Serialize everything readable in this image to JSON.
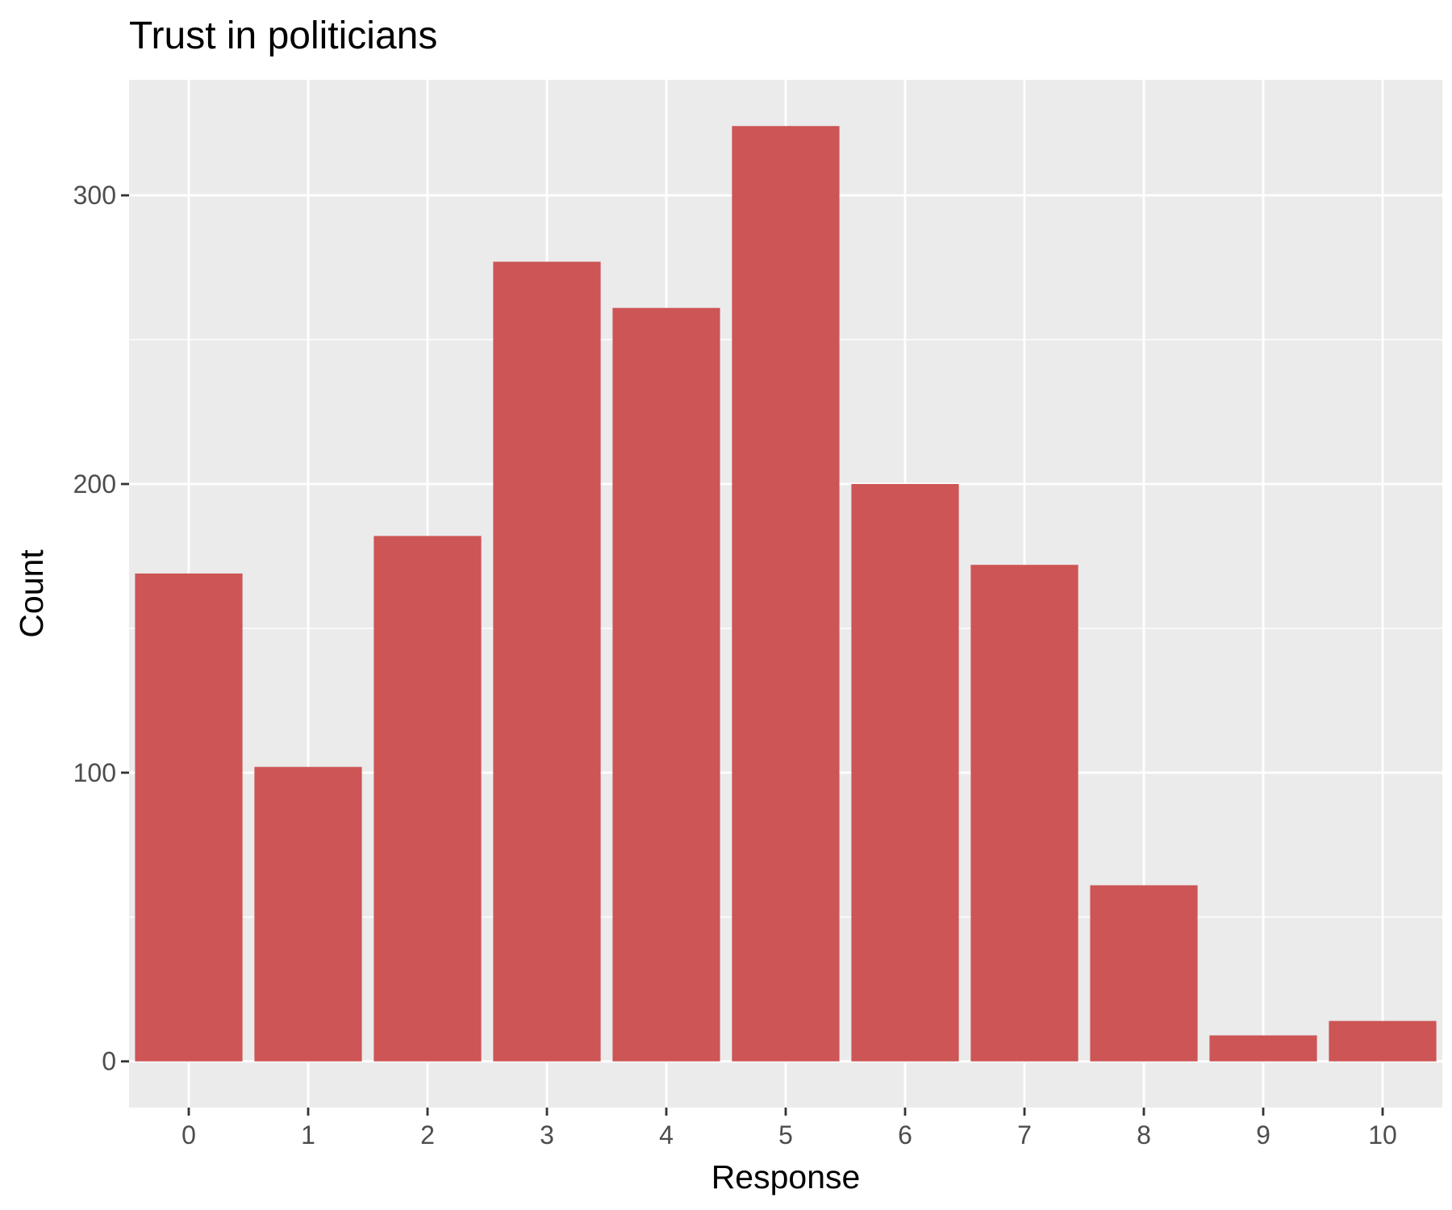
{
  "chart_data": {
    "type": "bar",
    "title": "Trust in politicians",
    "xlabel": "Response",
    "ylabel": "Count",
    "categories": [
      "0",
      "1",
      "2",
      "3",
      "4",
      "5",
      "6",
      "7",
      "8",
      "9",
      "10"
    ],
    "values": [
      169,
      102,
      182,
      277,
      261,
      324,
      200,
      172,
      61,
      9,
      14
    ],
    "ylim": [
      -16,
      340
    ],
    "yticks": [
      0,
      100,
      200,
      300
    ],
    "grid": true,
    "legend": "none",
    "colors": {
      "bar": "#cd5555",
      "panel": "#ebebeb",
      "grid": "#ffffff",
      "tick_text": "#4d4d4d"
    }
  }
}
